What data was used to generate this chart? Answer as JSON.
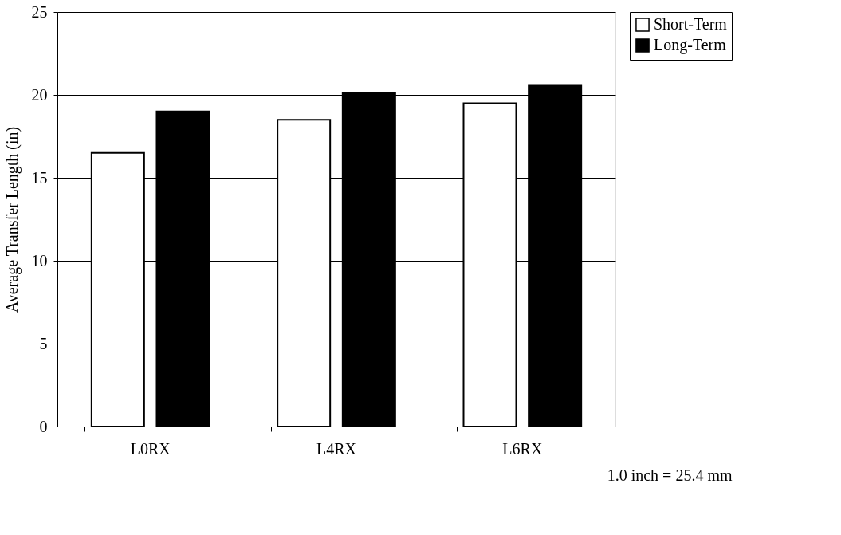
{
  "chart_data": {
    "type": "bar",
    "ylabel": "Average Transfer Length (in)",
    "categories": [
      "L0RX",
      "L4RX",
      "L6RX"
    ],
    "series": [
      {
        "name": "Short-Term",
        "color": "#ffffff",
        "values": [
          16.5,
          18.5,
          19.5
        ]
      },
      {
        "name": "Long-Term",
        "color": "#000000",
        "values": [
          19.0,
          20.1,
          20.6
        ]
      }
    ],
    "ylim": [
      0,
      25
    ],
    "yticks": [
      0,
      5,
      10,
      15,
      20,
      25
    ],
    "grid": "y",
    "legend": "right",
    "annotations": [
      "1.0 inch = 25.4 mm"
    ]
  }
}
